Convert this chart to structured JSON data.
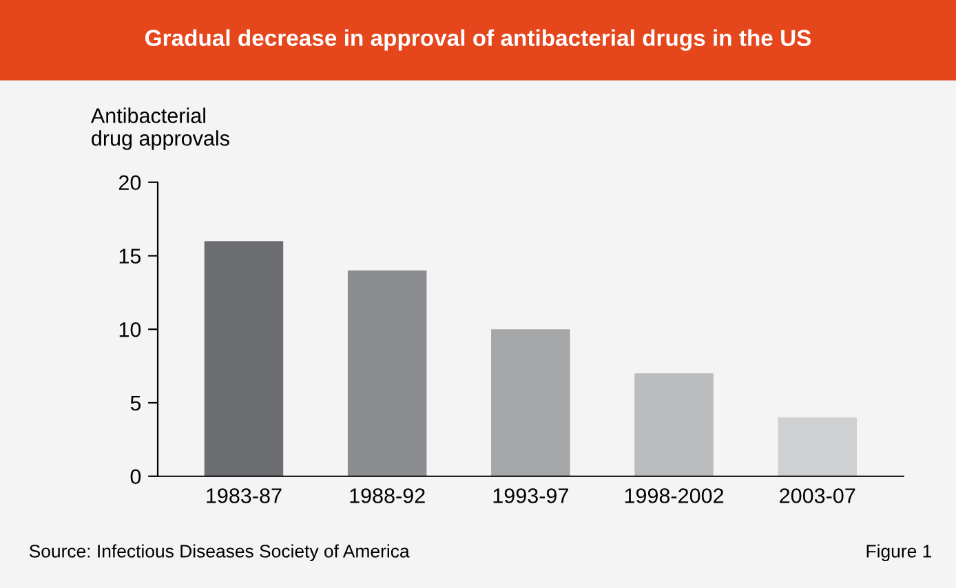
{
  "chart_data": {
    "type": "bar",
    "title": "Gradual decrease in approval of antibacterial drugs in the US",
    "ylabel": "Antibacterial\ndrug approvals",
    "categories": [
      "1983-87",
      "1988-92",
      "1993-97",
      "1998-2002",
      "2003-07"
    ],
    "values": [
      16,
      14,
      10,
      7,
      4
    ],
    "colors": [
      "#6b6d70",
      "#8b8d90",
      "#a4a6a8",
      "#bbbcbe",
      "#cfd0d1"
    ],
    "ylim": [
      0,
      20
    ],
    "yticks": [
      0,
      5,
      10,
      15,
      20
    ],
    "grid": false,
    "legend": false,
    "annotations": [
      "Source: Infectious Diseases Society of America",
      "Figure 1"
    ]
  }
}
